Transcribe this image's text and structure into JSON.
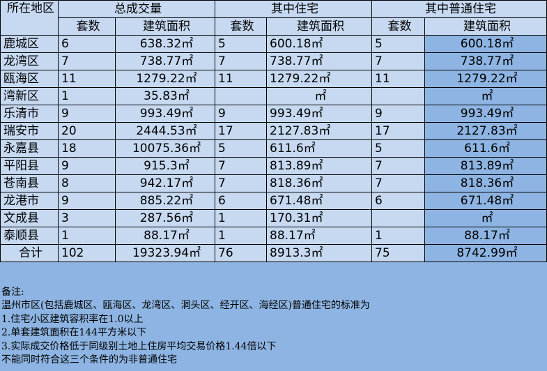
{
  "header": {
    "corner": "所在地区",
    "groups": [
      "总成交量",
      "其中住宅",
      "其中普通住宅"
    ],
    "sub_count": "套数",
    "sub_area": "建筑面积"
  },
  "unit": "㎡",
  "rows": [
    {
      "district": "鹿城区",
      "total_count": "6",
      "total_area": "638.32",
      "res_count": "5",
      "res_area": "600.18",
      "ord_count": "5",
      "ord_area": "600.18"
    },
    {
      "district": "龙湾区",
      "total_count": "7",
      "total_area": "738.77",
      "res_count": "7",
      "res_area": "738.77",
      "ord_count": "7",
      "ord_area": "738.77"
    },
    {
      "district": "瓯海区",
      "total_count": "11",
      "total_area": "1279.22",
      "res_count": "11",
      "res_area": "1279.22",
      "ord_count": "11",
      "ord_area": "1279.22"
    },
    {
      "district": "湾新区",
      "total_count": "1",
      "total_area": "35.83",
      "res_count": "",
      "res_area": "",
      "ord_count": "",
      "ord_area": ""
    },
    {
      "district": "乐清市",
      "total_count": "9",
      "total_area": "993.49",
      "res_count": "9",
      "res_area": "993.49",
      "ord_count": "9",
      "ord_area": "993.49"
    },
    {
      "district": "瑞安市",
      "total_count": "20",
      "total_area": "2444.53",
      "res_count": "17",
      "res_area": "2127.83",
      "ord_count": "17",
      "ord_area": "2127.83"
    },
    {
      "district": "永嘉县",
      "total_count": "18",
      "total_area": "10075.36",
      "res_count": "5",
      "res_area": "611.6",
      "ord_count": "5",
      "ord_area": "611.6"
    },
    {
      "district": "平阳县",
      "total_count": "9",
      "total_area": "915.3",
      "res_count": "7",
      "res_area": "813.89",
      "ord_count": "7",
      "ord_area": "813.89"
    },
    {
      "district": "苍南县",
      "total_count": "8",
      "total_area": "942.17",
      "res_count": "7",
      "res_area": "818.36",
      "ord_count": "7",
      "ord_area": "818.36"
    },
    {
      "district": "龙港市",
      "total_count": "9",
      "total_area": "885.22",
      "res_count": "6",
      "res_area": "671.48",
      "ord_count": "6",
      "ord_area": "671.48"
    },
    {
      "district": "文成县",
      "total_count": "3",
      "total_area": "287.56",
      "res_count": "1",
      "res_area": "170.31",
      "ord_count": "",
      "ord_area": ""
    },
    {
      "district": "泰顺县",
      "total_count": "1",
      "total_area": "88.17",
      "res_count": "1",
      "res_area": "88.17",
      "ord_count": "1",
      "ord_area": "88.17"
    },
    {
      "district": "合计",
      "total_count": "102",
      "total_area": "19323.94",
      "res_count": "76",
      "res_area": "8913.3",
      "ord_count": "75",
      "ord_area": "8742.99"
    }
  ],
  "notes": [
    "备注:",
    "温州市区(包括鹿城区、瓯海区、龙湾区、洞头区、经开区、海经区)普通住宅的标准为",
    "1.住宅小区建筑容积率在1.0以上",
    "2.单套建筑面积在144平方米以下",
    "3.实际成交价格低于同级别土地上住房平均交易价格1.44倍以下",
    "不能同时符合这三个条件的为非普通住宅"
  ]
}
